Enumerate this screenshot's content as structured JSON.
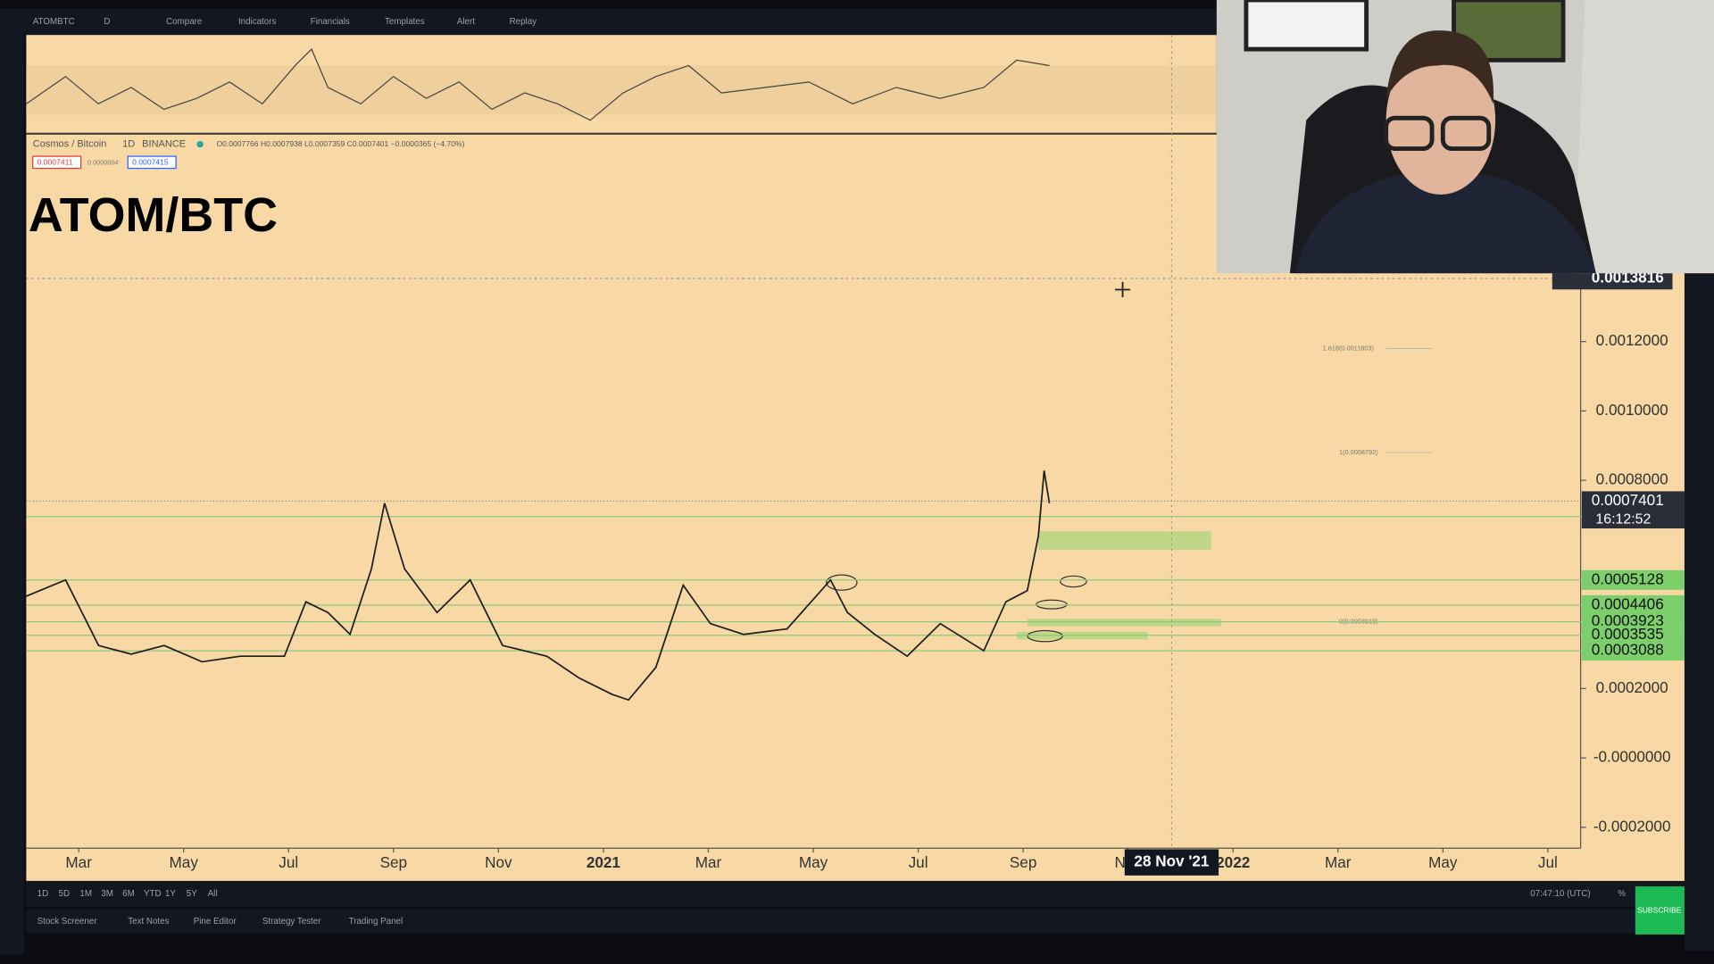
{
  "toolbar": {
    "symbol": "ATOMBTC",
    "interval": "D",
    "items": [
      "Compare",
      "Indicators",
      "Financials",
      "Templates",
      "Alert",
      "Replay"
    ]
  },
  "legend": {
    "name": "Cosmos / Bitcoin",
    "interval": "1D",
    "exchange": "BINANCE",
    "ohlc": "O0.0007766 H0.0007938 L0.0007359 C0.0007401 −0.0000365 (−4.70%)",
    "bid": "0.0007411",
    "spread": "0.0000004",
    "ask": "0.0007415"
  },
  "chart_data": {
    "type": "line",
    "title": "ATOM/BTC",
    "color": "#1c1c1c",
    "x": [
      1.0,
      1.75,
      2.38,
      3.0,
      3.63,
      4.35,
      5.08,
      5.92,
      6.33,
      6.75,
      7.17,
      7.58,
      7.83,
      8.21,
      8.83,
      9.46,
      10.08,
      10.92,
      11.54,
      12.17,
      12.48,
      13.0,
      13.52,
      14.04,
      14.67,
      15.5,
      16.33,
      16.65,
      17.17,
      17.79,
      18.42,
      19.25,
      19.67,
      20.08,
      20.29,
      20.4,
      20.5
    ],
    "values": [
      0.000466,
      0.000513,
      0.000324,
      0.000299,
      0.000324,
      0.000277,
      0.000293,
      0.000293,
      0.00045,
      0.000419,
      0.000356,
      0.000545,
      0.000734,
      0.000545,
      0.000419,
      0.000513,
      0.000324,
      0.000293,
      0.00023,
      0.000183,
      0.000167,
      0.000261,
      0.000498,
      0.000387,
      0.000356,
      0.000372,
      0.000513,
      0.000419,
      0.000356,
      0.000293,
      0.000387,
      0.000309,
      0.00045,
      0.000482,
      0.000639,
      0.000828,
      0.000734
    ],
    "xlim": [
      1.0,
      32.0
    ],
    "xticks": [
      {
        "value": 2,
        "label": "Mar"
      },
      {
        "value": 4,
        "label": "May"
      },
      {
        "value": 6,
        "label": "Jul"
      },
      {
        "value": 8,
        "label": "Sep"
      },
      {
        "value": 10,
        "label": "Nov"
      },
      {
        "value": 12,
        "label": "2021"
      },
      {
        "value": 14,
        "label": "Mar"
      },
      {
        "value": 16,
        "label": "May"
      },
      {
        "value": 18,
        "label": "Jul"
      },
      {
        "value": 20,
        "label": "Sep"
      },
      {
        "value": 22,
        "label": "Nov"
      },
      {
        "value": 24,
        "label": "2022"
      },
      {
        "value": 26,
        "label": "Mar"
      },
      {
        "value": 28,
        "label": "May"
      },
      {
        "value": 30,
        "label": "Jul"
      }
    ],
    "ylim": [
      -0.00026,
      0.0018
    ],
    "yticks": [
      {
        "value": 0.0012,
        "label": "0.0012000"
      },
      {
        "value": 0.001,
        "label": "0.0010000"
      },
      {
        "value": 0.0008,
        "label": "0.0008000"
      },
      {
        "value": 0.0002,
        "label": "0.0002000"
      },
      {
        "value": 0,
        "label": "-0.0000000"
      },
      {
        "value": -0.0002,
        "label": "-0.0002000"
      }
    ],
    "crosshair": {
      "price": 0.0013816,
      "x": 22.83,
      "date": "28 Nov '21"
    },
    "last_price": 0.0007401,
    "countdown": "16:12:52",
    "levels": [
      0.0006957,
      0.0005128,
      0.0004406,
      0.0003923,
      0.0003535,
      0.0003088
    ],
    "fib_labels": [
      "1.618(0.0011803)",
      "1(0.0008792)",
      "0(0.0003919)"
    ]
  },
  "bottom_bar": {
    "ranges": [
      "1D",
      "5D",
      "1M",
      "3M",
      "6M",
      "YTD",
      "1Y",
      "5Y",
      "All"
    ],
    "clock": "07:47:10 (UTC)",
    "percent": "%",
    "tabs": [
      "Stock Screener",
      "Text Notes",
      "Pine Editor",
      "Strategy Tester",
      "Trading Panel"
    ]
  },
  "subscribe": "SUBSCRIBE"
}
